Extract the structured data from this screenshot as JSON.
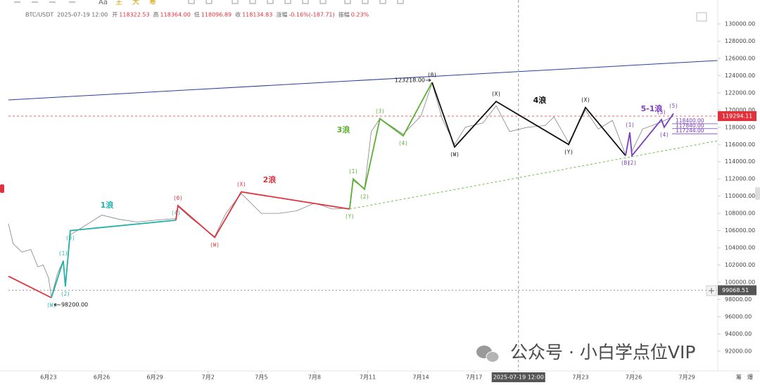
{
  "chart_data": {
    "type": "line",
    "header": {
      "symbol": "BTC/USDT",
      "datetime": "2025-07-19 12:00",
      "fields": [
        {
          "label": "开",
          "value": "118322.53"
        },
        {
          "label": "高",
          "value": "118364.00"
        },
        {
          "label": "低",
          "value": "118096.89"
        },
        {
          "label": "收",
          "value": "118134.83"
        },
        {
          "label": "涨幅",
          "value": "-0.16%(-187.71)"
        },
        {
          "label": "振幅",
          "value": "0.23%"
        }
      ]
    },
    "toolbar": [
      "Aa",
      "主",
      "大",
      "筹"
    ],
    "footer_buttons": [
      "筹",
      "爆"
    ],
    "watermark": "公众号 · 小白学点位VIP",
    "xlim": [
      -2.26,
      37.74
    ],
    "ylim": [
      89700,
      132780
    ],
    "xticks": [
      {
        "value": 0,
        "label": "6月23"
      },
      {
        "value": 3,
        "label": "6月26"
      },
      {
        "value": 6,
        "label": "6月29"
      },
      {
        "value": 9,
        "label": "7月2"
      },
      {
        "value": 12,
        "label": "7月5"
      },
      {
        "value": 15,
        "label": "7月8"
      },
      {
        "value": 18,
        "label": "7月11"
      },
      {
        "value": 21,
        "label": "7月14"
      },
      {
        "value": 24,
        "label": "7月17"
      },
      {
        "value": 30,
        "label": "7月23"
      },
      {
        "value": 33,
        "label": "7月26"
      },
      {
        "value": 36,
        "label": "7月29"
      }
    ],
    "yticks": [
      {
        "value": 92000,
        "label": "92000.00"
      },
      {
        "value": 94000,
        "label": "94000.00"
      },
      {
        "value": 96000,
        "label": "96000.00"
      },
      {
        "value": 98000,
        "label": "98000.00"
      },
      {
        "value": 100000,
        "label": "100000.00"
      },
      {
        "value": 102000,
        "label": "102000.00"
      },
      {
        "value": 104000,
        "label": "104000.00"
      },
      {
        "value": 106000,
        "label": "106000.00"
      },
      {
        "value": 108000,
        "label": "108000.00"
      },
      {
        "value": 110000,
        "label": "110000.00"
      },
      {
        "value": 112000,
        "label": "112000.00"
      },
      {
        "value": 114000,
        "label": "114000.00"
      },
      {
        "value": 116000,
        "label": "116000.00"
      },
      {
        "value": 118000,
        "label": "118000.00"
      },
      {
        "value": 120000,
        "label": "120000.00"
      },
      {
        "value": 122000,
        "label": "122000.00"
      },
      {
        "value": 124000,
        "label": "124000.00"
      },
      {
        "value": 126000,
        "label": "126000.00"
      },
      {
        "value": 128000,
        "label": "128000.00"
      },
      {
        "value": 130000,
        "label": "130000.00"
      }
    ],
    "price": {
      "color": "#5a5a5a",
      "x": [
        -2.26,
        -2,
        -1.5,
        -1,
        -0.6,
        -0.3,
        0,
        0.16,
        0.5,
        0.83,
        0.95,
        1.23,
        2,
        3,
        4,
        5,
        6,
        7.18,
        7.3,
        8,
        9.37,
        10,
        10.87,
        12,
        13,
        14,
        15,
        16,
        16.98,
        17.18,
        17.82,
        18.2,
        18.69,
        20,
        21,
        21.63,
        22.2,
        22.9,
        23.5,
        24.5,
        25.24,
        26,
        27,
        28,
        28.5,
        29.33,
        30.28,
        31,
        31.8,
        32.54,
        32.78,
        32.9,
        33.5,
        34.56,
        35.24
      ],
      "values": [
        106800,
        104500,
        103500,
        103800,
        101800,
        102000,
        100500,
        98300,
        101000,
        102500,
        99500,
        105500,
        106500,
        107800,
        107300,
        107000,
        107200,
        107400,
        108800,
        107500,
        105300,
        108000,
        110300,
        108000,
        108000,
        108300,
        109200,
        108500,
        108600,
        111800,
        110900,
        117500,
        119000,
        117200,
        119300,
        123100,
        119000,
        116000,
        118000,
        118500,
        120500,
        117500,
        118000,
        118200,
        119200,
        116200,
        120000,
        117800,
        118800,
        114800,
        117300,
        115200,
        117800,
        118600,
        119300
      ]
    },
    "series": [
      {
        "color": "#e0323c",
        "x": [
          -2.26,
          0.16
        ],
        "values": [
          100700,
          98200
        ],
        "point_labels": [
          null,
          null
        ]
      },
      {
        "name": "1浪",
        "color": "#24b0aa",
        "x": [
          0.16,
          0.83,
          0.95,
          1.23,
          7.18
        ],
        "values": [
          98200,
          102500,
          99500,
          106000,
          107200
        ],
        "point_labels": [
          "(W)",
          "(1)",
          "(2)",
          "(3)",
          "(4)"
        ]
      },
      {
        "name": "2浪",
        "color": "#e0323c",
        "x": [
          7.18,
          7.3,
          9.37,
          10.87,
          16.98
        ],
        "values": [
          107200,
          108900,
          105200,
          110500,
          108500
        ],
        "point_labels": [
          null,
          "(θ)",
          "(W)",
          "(X)",
          null
        ]
      },
      {
        "name": "3浪",
        "color": "#5ab030",
        "x": [
          16.98,
          17.18,
          17.82,
          18.69,
          20,
          21.63
        ],
        "values": [
          108500,
          112000,
          110800,
          119000,
          117000,
          123218
        ],
        "point_labels": [
          "(Y)",
          "(1)",
          "(2)",
          "(3)",
          "(4)",
          null
        ]
      },
      {
        "name": "4浪",
        "color": "#111111",
        "x": [
          21.63,
          22.9,
          25.24,
          29.33,
          30.28,
          32.54
        ],
        "values": [
          123218,
          115700,
          121000,
          116000,
          120300,
          114700
        ],
        "point_labels": [
          "(θ)",
          "(W)",
          "(X)",
          "(Y)",
          "(X)",
          null
        ]
      },
      {
        "name": "5-1浪",
        "color": "#7b3fc0",
        "x": [
          32.54,
          32.78,
          32.9,
          34.56,
          34.72,
          35.24
        ],
        "values": [
          114700,
          117400,
          114700,
          118900,
          118000,
          119600
        ],
        "point_labels": [
          "(B)",
          "(1)",
          "(2)",
          "(3)",
          "(4)",
          "(5)"
        ]
      }
    ],
    "trendlines": [
      {
        "color": "#2a3f9a",
        "x": [
          -2.26,
          37.74
        ],
        "values": [
          121173,
          125750
        ]
      },
      {
        "color": "#6cc24a",
        "dashed": true,
        "x": [
          16.98,
          37.74
        ],
        "values": [
          108503,
          116432
        ]
      }
    ],
    "annotations": [
      {
        "x": 21.63,
        "value": 123218,
        "label": "123218.00"
      },
      {
        "x": 0.16,
        "value": 98200,
        "label": "98200.00"
      }
    ],
    "levels": [
      {
        "value": 118400,
        "label": "118400.00"
      },
      {
        "value": 117840,
        "label": "117840.00"
      },
      {
        "value": 117244,
        "label": "117244.00"
      }
    ],
    "current_price": 119294.11,
    "crosshair": {
      "x": 26.5,
      "x_label": "2025-07-19 12:00",
      "price": 99068.51
    }
  }
}
